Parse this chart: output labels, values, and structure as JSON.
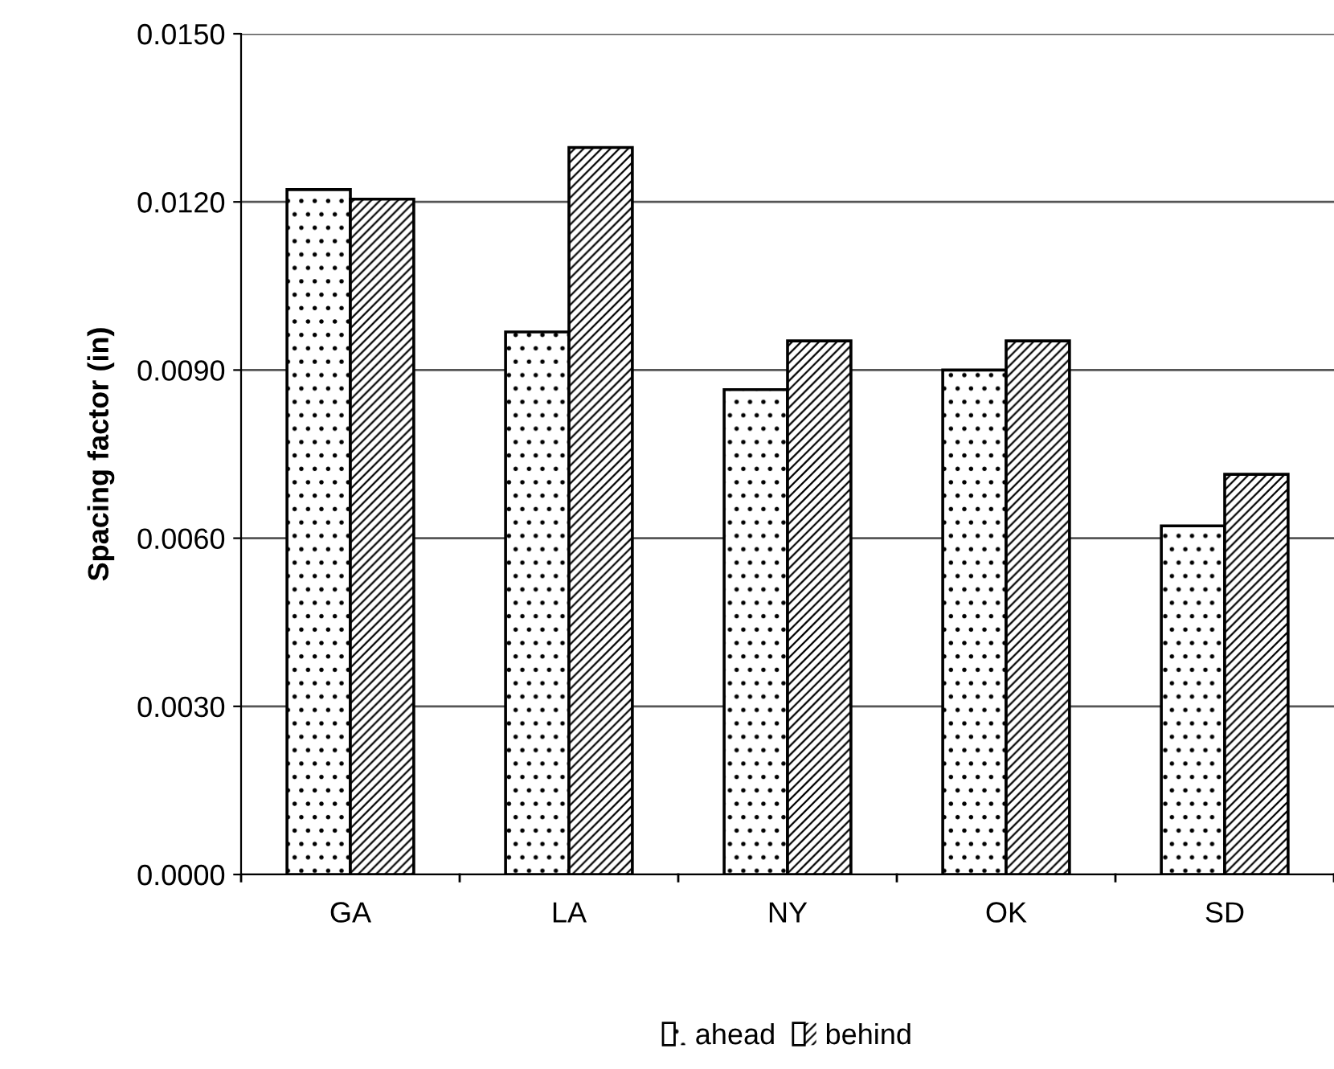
{
  "chart_data": {
    "type": "bar",
    "ylabel": "Spacing factor (in)",
    "categories": [
      "GA",
      "LA",
      "NY",
      "OK",
      "SD"
    ],
    "series": [
      {
        "name": "ahead",
        "color": "#ffffff",
        "values": [
          0.01222,
          0.00968,
          0.00865,
          0.009,
          0.00622
        ]
      },
      {
        "name": "behind",
        "color": "#ffffff",
        "values": [
          0.01205,
          0.01297,
          0.00952,
          0.00952,
          0.00714
        ]
      }
    ],
    "ylim": [
      0,
      0.015
    ],
    "yticks": [
      {
        "value": 0,
        "label": "0.0000"
      },
      {
        "value": 0.003,
        "label": "0.0030"
      },
      {
        "value": 0.006,
        "label": "0.0060"
      },
      {
        "value": 0.009,
        "label": "0.0090"
      },
      {
        "value": 0.012,
        "label": "0.0120"
      },
      {
        "value": 0.015,
        "label": "0.0150"
      }
    ],
    "grid": "y",
    "legend": "bottom"
  }
}
